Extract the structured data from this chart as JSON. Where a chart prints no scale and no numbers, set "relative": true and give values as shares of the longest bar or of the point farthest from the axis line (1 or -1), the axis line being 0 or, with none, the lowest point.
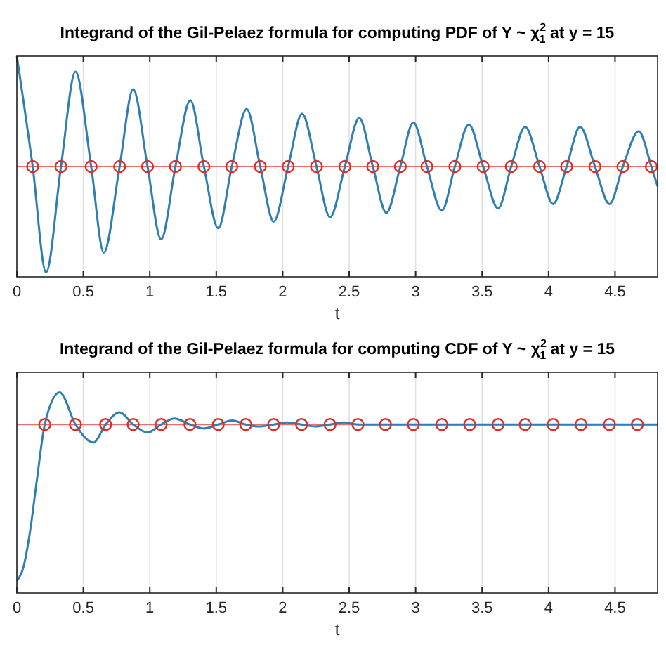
{
  "chart_data": [
    {
      "type": "line",
      "title": "Integrand of the Gil-Pelaez formula for computing PDF of Y ~ χ$^{2}$$_{1}$ at y = 15",
      "xlabel": "t",
      "relative": true,
      "xlim": [
        0,
        4.82
      ],
      "xticks": [
        0,
        0.5,
        1,
        1.5,
        2,
        2.5,
        3,
        3.5,
        4,
        4.5
      ],
      "grid": "x",
      "ref_lines": [
        {
          "axis": "y",
          "value": 0.5,
          "color": "#e8706c"
        }
      ],
      "series": [
        {
          "type": "line",
          "color": "#2f7fb3",
          "marker": "none",
          "x": [
            0,
            0.119,
            0.22,
            0.332,
            0.441,
            0.559,
            0.654,
            0.773,
            0.875,
            0.983,
            1.085,
            1.193,
            1.305,
            1.407,
            1.515,
            1.617,
            1.729,
            1.831,
            1.932,
            2.041,
            2.146,
            2.254,
            2.356,
            2.468,
            2.576,
            2.678,
            2.78,
            2.885,
            2.983,
            3.085,
            3.197,
            3.295,
            3.4,
            3.508,
            3.62,
            3.719,
            3.824,
            3.932,
            4.034,
            4.136,
            4.237,
            4.349,
            4.458,
            4.559,
            4.678,
            4.773,
            4.82
          ],
          "values": [
            1.0,
            0.5,
            0.02,
            0.5,
            0.93,
            0.5,
            0.11,
            0.5,
            0.85,
            0.5,
            0.17,
            0.5,
            0.8,
            0.5,
            0.22,
            0.5,
            0.76,
            0.5,
            0.25,
            0.5,
            0.74,
            0.5,
            0.27,
            0.5,
            0.72,
            0.5,
            0.29,
            0.5,
            0.7,
            0.5,
            0.3,
            0.5,
            0.69,
            0.5,
            0.31,
            0.5,
            0.68,
            0.5,
            0.33,
            0.5,
            0.68,
            0.5,
            0.33,
            0.5,
            0.66,
            0.5,
            0.41
          ]
        },
        {
          "type": "scatter",
          "color": "#d9302c",
          "marker": "circle",
          "x": [
            0.119,
            0.332,
            0.559,
            0.773,
            0.983,
            1.193,
            1.407,
            1.617,
            1.831,
            2.041,
            2.254,
            2.468,
            2.678,
            2.885,
            3.085,
            3.295,
            3.508,
            3.719,
            3.932,
            4.136,
            4.349,
            4.559,
            4.773
          ],
          "values": [
            0.5,
            0.5,
            0.5,
            0.5,
            0.5,
            0.5,
            0.5,
            0.5,
            0.5,
            0.5,
            0.5,
            0.5,
            0.5,
            0.5,
            0.5,
            0.5,
            0.5,
            0.5,
            0.5,
            0.5,
            0.5,
            0.5,
            0.5
          ]
        }
      ]
    },
    {
      "type": "line",
      "title": "Integrand of the Gil-Pelaez formula for computing CDF of Y ~ χ$^{2}$$_{1}$ at y = 15",
      "xlabel": "t",
      "relative": true,
      "xlim": [
        0,
        4.82
      ],
      "xticks": [
        0,
        0.5,
        1,
        1.5,
        2,
        2.5,
        3,
        3.5,
        4,
        4.5
      ],
      "grid": "x",
      "ref_lines": [
        {
          "axis": "y",
          "value": 0.84,
          "color": "#e8706c"
        }
      ],
      "series": [
        {
          "type": "line",
          "color": "#2f7fb3",
          "marker": "none",
          "x": [
            0,
            0.05,
            0.1,
            0.15,
            0.21,
            0.322,
            0.441,
            0.576,
            0.668,
            0.773,
            0.875,
            0.983,
            1.085,
            1.186,
            1.302,
            1.407,
            1.515,
            1.62,
            1.722,
            1.824,
            1.932,
            2.034,
            2.142,
            2.244,
            2.356,
            2.458,
            2.566,
            2.67,
            2.773,
            2.88,
            2.983,
            3.09,
            3.197,
            3.3,
            3.407,
            3.51,
            3.62,
            3.72,
            3.824,
            3.93,
            4.034,
            4.14,
            4.244,
            4.35,
            4.458,
            4.56,
            4.668,
            4.82
          ],
          "values": [
            0.06,
            0.13,
            0.31,
            0.56,
            0.84,
            1.0,
            0.84,
            0.75,
            0.84,
            0.9,
            0.84,
            0.8,
            0.84,
            0.87,
            0.84,
            0.82,
            0.84,
            0.86,
            0.84,
            0.83,
            0.84,
            0.85,
            0.84,
            0.83,
            0.84,
            0.85,
            0.84,
            0.84,
            0.84,
            0.84,
            0.84,
            0.84,
            0.84,
            0.84,
            0.84,
            0.84,
            0.84,
            0.84,
            0.84,
            0.84,
            0.84,
            0.84,
            0.84,
            0.84,
            0.84,
            0.84,
            0.84,
            0.84
          ]
        },
        {
          "type": "scatter",
          "color": "#d9302c",
          "marker": "circle",
          "x": [
            0.21,
            0.441,
            0.668,
            0.875,
            1.085,
            1.302,
            1.515,
            1.722,
            1.932,
            2.142,
            2.356,
            2.566,
            2.773,
            2.983,
            3.197,
            3.407,
            3.62,
            3.824,
            4.034,
            4.244,
            4.458,
            4.668
          ],
          "values": [
            0.84,
            0.84,
            0.84,
            0.84,
            0.84,
            0.84,
            0.84,
            0.84,
            0.84,
            0.84,
            0.84,
            0.84,
            0.84,
            0.84,
            0.84,
            0.84,
            0.84,
            0.84,
            0.84,
            0.84,
            0.84,
            0.84
          ]
        }
      ]
    }
  ]
}
